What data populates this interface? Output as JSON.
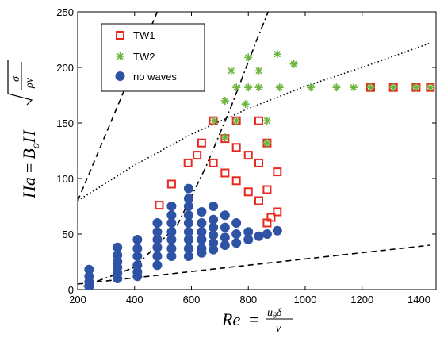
{
  "chart_data": {
    "type": "scatter",
    "title": "",
    "xlabel": "Re = u_θ δ / ν",
    "ylabel": "Ha = B_o H √(σ / ρν)",
    "xlim": [
      200,
      1460
    ],
    "ylim": [
      0,
      250
    ],
    "xticks": [
      "200",
      "400",
      "600",
      "800",
      "1000",
      "1200",
      "1400"
    ],
    "yticks": [
      "0",
      "50",
      "100",
      "150",
      "200",
      "250"
    ],
    "grid": false,
    "legend_position": "top-left",
    "series": [
      {
        "name": "TW1",
        "marker": "open-square",
        "color": "#e8281e",
        "points": [
          [
            487,
            76
          ],
          [
            530,
            95
          ],
          [
            588,
            114
          ],
          [
            620,
            121
          ],
          [
            636,
            132
          ],
          [
            677,
            152
          ],
          [
            677,
            114
          ],
          [
            718,
            136
          ],
          [
            718,
            105
          ],
          [
            758,
            152
          ],
          [
            758,
            128
          ],
          [
            758,
            98
          ],
          [
            800,
            121
          ],
          [
            800,
            88
          ],
          [
            837,
            152
          ],
          [
            837,
            114
          ],
          [
            837,
            80
          ],
          [
            866,
            132
          ],
          [
            866,
            90
          ],
          [
            866,
            60
          ],
          [
            902,
            106
          ],
          [
            902,
            70
          ],
          [
            880,
            65
          ],
          [
            1230,
            182
          ],
          [
            1310,
            182
          ],
          [
            1390,
            182
          ],
          [
            1440,
            182
          ]
        ]
      },
      {
        "name": "TW2",
        "marker": "star",
        "color": "#6ab43e",
        "points": [
          [
            680,
            152
          ],
          [
            718,
            170
          ],
          [
            718,
            137
          ],
          [
            740,
            197
          ],
          [
            758,
            182
          ],
          [
            758,
            152
          ],
          [
            790,
            167
          ],
          [
            800,
            209
          ],
          [
            800,
            182
          ],
          [
            837,
            197
          ],
          [
            837,
            182
          ],
          [
            866,
            152
          ],
          [
            866,
            132
          ],
          [
            902,
            212
          ],
          [
            910,
            182
          ],
          [
            960,
            203
          ],
          [
            1020,
            182
          ],
          [
            1110,
            182
          ],
          [
            1170,
            182
          ],
          [
            1230,
            182
          ],
          [
            1310,
            182
          ],
          [
            1390,
            182
          ],
          [
            1440,
            182
          ]
        ]
      },
      {
        "name": "no waves",
        "marker": "filled-circle",
        "color": "#2f53a4",
        "points": [
          [
            240,
            18
          ],
          [
            240,
            12
          ],
          [
            240,
            7
          ],
          [
            240,
            3
          ],
          [
            340,
            38
          ],
          [
            340,
            31
          ],
          [
            340,
            25
          ],
          [
            340,
            20
          ],
          [
            340,
            15
          ],
          [
            340,
            10
          ],
          [
            410,
            45
          ],
          [
            410,
            37
          ],
          [
            410,
            30
          ],
          [
            410,
            22
          ],
          [
            410,
            16
          ],
          [
            410,
            12
          ],
          [
            480,
            60
          ],
          [
            480,
            52
          ],
          [
            480,
            45
          ],
          [
            480,
            38
          ],
          [
            480,
            30
          ],
          [
            480,
            22
          ],
          [
            530,
            75
          ],
          [
            530,
            67
          ],
          [
            530,
            60
          ],
          [
            530,
            52
          ],
          [
            530,
            45
          ],
          [
            530,
            37
          ],
          [
            530,
            30
          ],
          [
            590,
            91
          ],
          [
            590,
            82
          ],
          [
            590,
            75
          ],
          [
            590,
            67
          ],
          [
            590,
            60
          ],
          [
            590,
            52
          ],
          [
            590,
            45
          ],
          [
            590,
            37
          ],
          [
            590,
            30
          ],
          [
            636,
            70
          ],
          [
            636,
            60
          ],
          [
            636,
            52
          ],
          [
            636,
            45
          ],
          [
            636,
            37
          ],
          [
            636,
            33
          ],
          [
            677,
            75
          ],
          [
            677,
            63
          ],
          [
            677,
            56
          ],
          [
            677,
            49
          ],
          [
            677,
            42
          ],
          [
            677,
            36
          ],
          [
            718,
            67
          ],
          [
            718,
            56
          ],
          [
            718,
            47
          ],
          [
            718,
            40
          ],
          [
            758,
            60
          ],
          [
            758,
            50
          ],
          [
            758,
            42
          ],
          [
            800,
            52
          ],
          [
            800,
            45
          ],
          [
            837,
            48
          ],
          [
            866,
            50
          ],
          [
            902,
            53
          ]
        ]
      },
      {
        "name": "",
        "type": "line",
        "style": "dashed",
        "color": "#000000",
        "points": [
          [
            200,
            80
          ],
          [
            480,
            250
          ]
        ]
      },
      {
        "name": "",
        "type": "line",
        "style": "dashdot",
        "color": "#000000",
        "points": [
          [
            220,
            3
          ],
          [
            400,
            20
          ],
          [
            550,
            58
          ],
          [
            650,
            110
          ],
          [
            740,
            165
          ],
          [
            830,
            225
          ],
          [
            870,
            250
          ]
        ]
      },
      {
        "name": "",
        "type": "line",
        "style": "dotted",
        "color": "#000000",
        "points": [
          [
            200,
            80
          ],
          [
            400,
            112
          ],
          [
            600,
            140
          ],
          [
            800,
            163
          ],
          [
            1000,
            183
          ],
          [
            1200,
            200
          ],
          [
            1440,
            222
          ]
        ]
      },
      {
        "name": "",
        "type": "line",
        "style": "dashed",
        "color": "#000000",
        "points": [
          [
            200,
            5
          ],
          [
            1440,
            40
          ]
        ]
      }
    ]
  }
}
